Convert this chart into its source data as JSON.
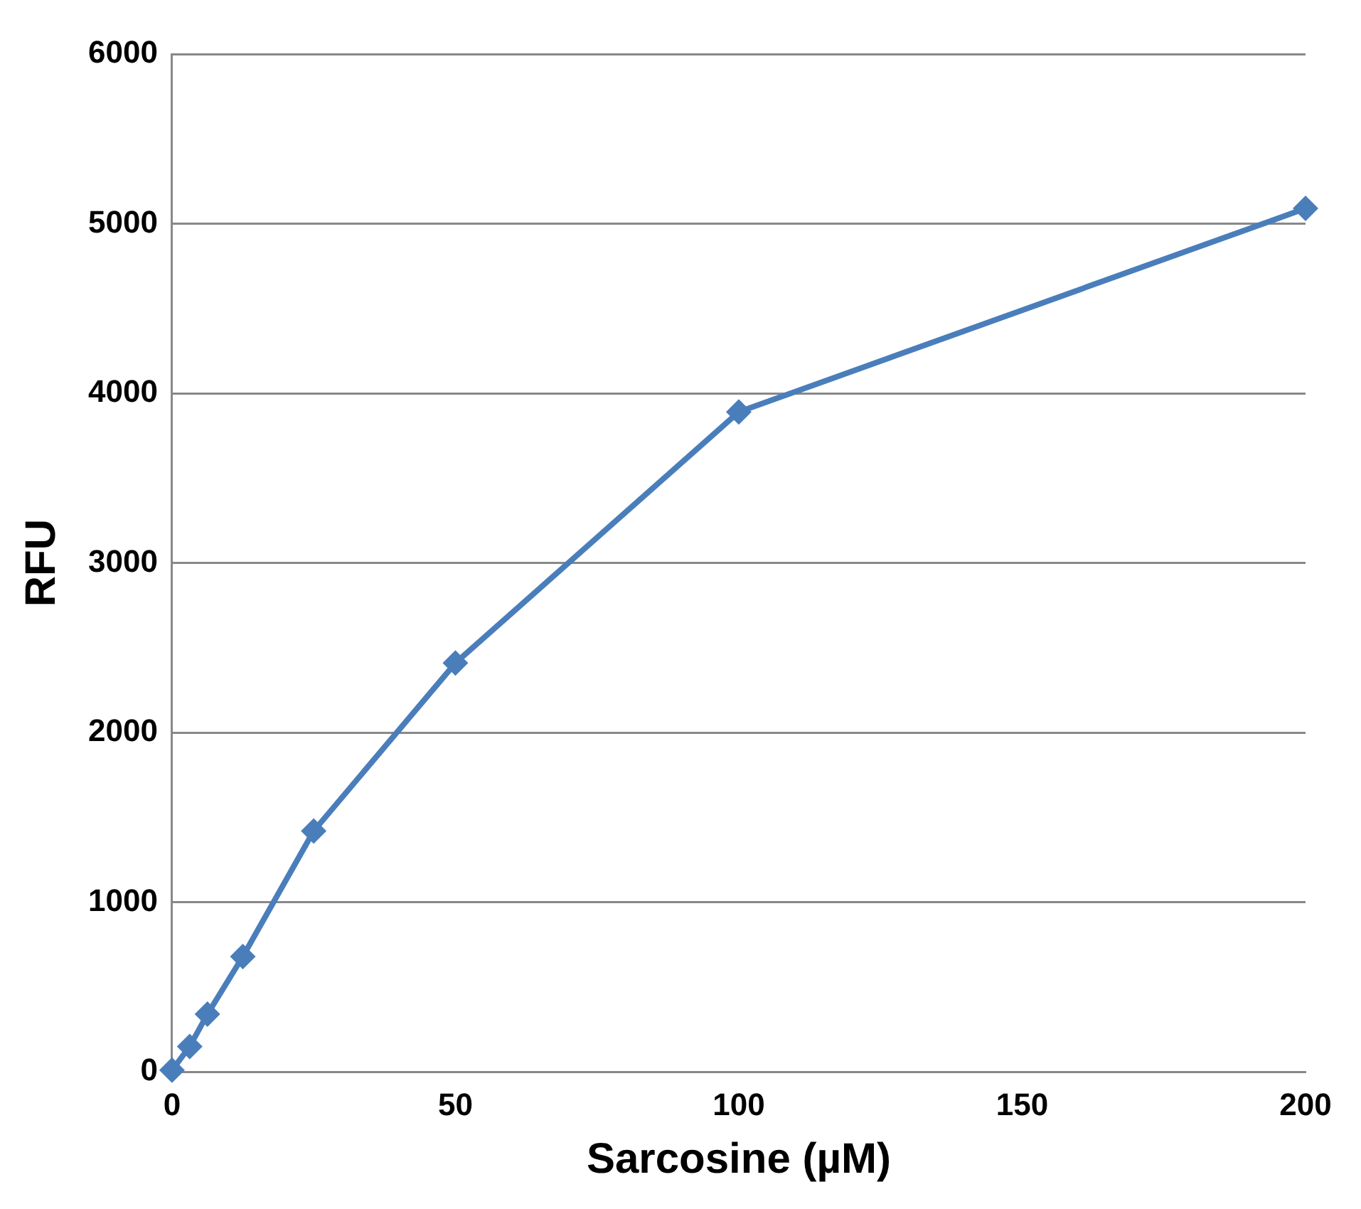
{
  "chart_data": {
    "type": "line",
    "xlabel": "Sarcosine (µM)",
    "ylabel": "RFU",
    "x": [
      0,
      3.125,
      6.25,
      12.5,
      25,
      50,
      100,
      200
    ],
    "series": [
      {
        "color": "#4a7ebb",
        "values": [
          10,
          150,
          340,
          680,
          1420,
          2410,
          3890,
          5090
        ]
      }
    ],
    "xlim": [
      0,
      200
    ],
    "xticks": [
      0,
      50,
      100,
      150,
      200
    ],
    "ylim": [
      0,
      6000
    ],
    "yticks": [
      0,
      1000,
      2000,
      3000,
      4000,
      5000,
      6000
    ],
    "grid": "y",
    "legend": false,
    "marker": "diamond",
    "line_style": "solid"
  }
}
